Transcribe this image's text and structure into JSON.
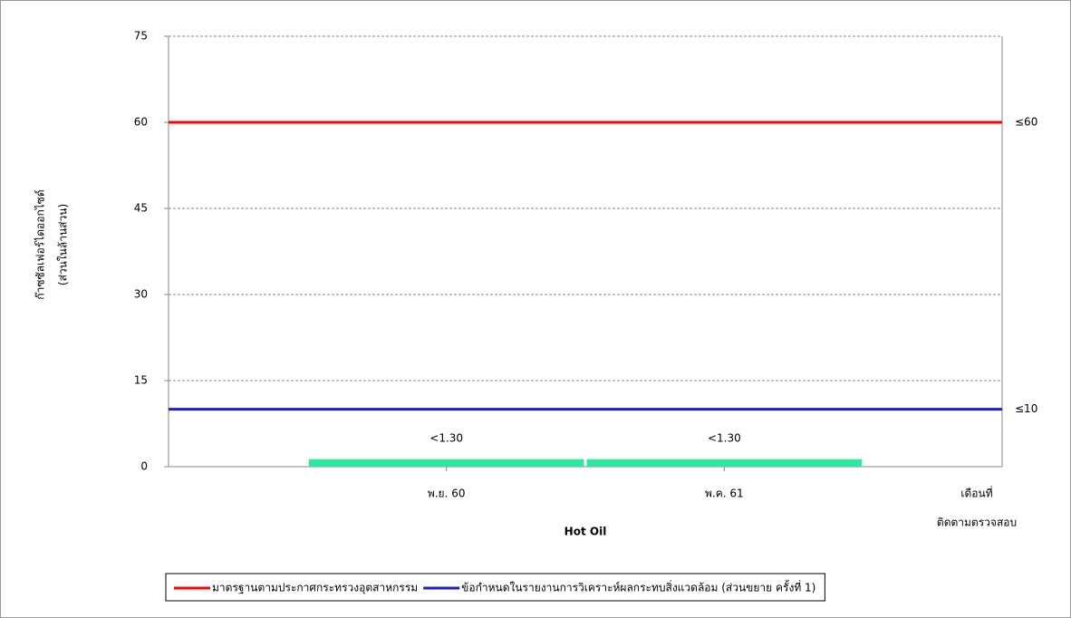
{
  "chart_data": {
    "type": "bar",
    "x_label": "Hot Oil",
    "x_unit_label": [
      "เดือนที่",
      "ติดตามตรวจสอบ"
    ],
    "y_label": [
      "ก๊าซซัลเฟอร์ไดออกไซด์",
      "(ส่วนในล้านส่วน)"
    ],
    "categories": [
      "พ.ย. 60",
      "พ.ค. 61"
    ],
    "values": [
      1.3,
      1.3
    ],
    "value_labels": [
      "<1.30",
      "<1.30"
    ],
    "color": "#2ee8a0",
    "ylim": [
      0,
      75
    ],
    "yticks": [
      0,
      15,
      30,
      45,
      60,
      75
    ],
    "grid": true,
    "reference_lines": [
      {
        "name": "มาตรฐานตามประกาศกระทรวงอุตสาหกรรม",
        "color": "#ff0000",
        "value": 60,
        "label": "≤60"
      },
      {
        "name": "ข้อกำหนดในรายงานการวิเคราะห์ผลกระทบสิ่งแวดล้อม (ส่วนขยาย ครั้งที่ 1)",
        "color": "#1f1fbf",
        "value": 10,
        "label": "≤10"
      }
    ],
    "legend": "bottom"
  }
}
